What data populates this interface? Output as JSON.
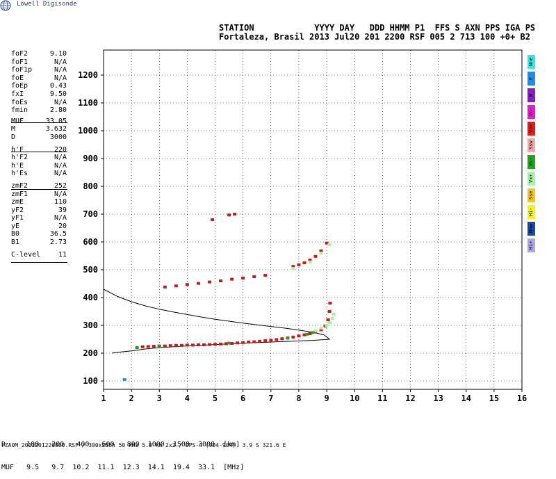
{
  "brand": "Lowell Digisonde",
  "header": {
    "line1": "STATION            YYYY DAY   DDD HHMM P1  FFS S AXN PPS IGA PS",
    "line2": "Fortaleza, Brasil 2013 Jul20 201 2200 RSF 005 2 713 100 +0+ B2"
  },
  "params": [
    {
      "label": "foF2",
      "value": "9.10"
    },
    {
      "label": "foF1",
      "value": "N/A"
    },
    {
      "label": "foF1p",
      "value": "N/A"
    },
    {
      "label": "foE",
      "value": "N/A"
    },
    {
      "label": "foEp",
      "value": "0.43"
    },
    {
      "label": "fxI",
      "value": "9.50"
    },
    {
      "label": "foEs",
      "value": "N/A"
    },
    {
      "label": "fmin",
      "value": "2.80"
    },
    {
      "label": "MUF",
      "value": "33.05"
    },
    {
      "label": "M",
      "value": "3.632"
    },
    {
      "label": "D",
      "value": "3000"
    },
    {
      "label": "h'F",
      "value": "220"
    },
    {
      "label": "h'F2",
      "value": "N/A"
    },
    {
      "label": "h'E",
      "value": "N/A"
    },
    {
      "label": "h'Es",
      "value": "N/A"
    },
    {
      "label": "zmF2",
      "value": "252"
    },
    {
      "label": "zmF1",
      "value": "N/A"
    },
    {
      "label": "zmE",
      "value": "110"
    },
    {
      "label": "yF2",
      "value": "39"
    },
    {
      "label": "yF1",
      "value": "N/A"
    },
    {
      "label": "yE",
      "value": "20"
    },
    {
      "label": "B0",
      "value": "36.5"
    },
    {
      "label": "B1",
      "value": "2.73"
    },
    {
      "label": "C-level",
      "value": "11"
    }
  ],
  "legend": [
    {
      "label": "Nne",
      "color": "#33e8e8"
    },
    {
      "label": "E",
      "color": "#1a8fe8"
    },
    {
      "label": "W",
      "color": "#8a1acc"
    },
    {
      "label": "Vo-",
      "color": "#e81acc"
    },
    {
      "label": "Vo+",
      "color": "#e81a1a"
    },
    {
      "label": "Ssw",
      "color": "#f4a8a8"
    },
    {
      "label": "Vx-",
      "color": "#1aa81a"
    },
    {
      "label": "Vx+",
      "color": "#a8f4a8"
    },
    {
      "label": "Sse",
      "color": "#f4c81a"
    },
    {
      "label": "Hi-",
      "color": "#f4f41a"
    },
    {
      "label": "Nnw",
      "color": "#1a4aa8"
    },
    {
      "label": "Hi+",
      "color": "#a8a8e8"
    }
  ],
  "distance_table": {
    "row1": "D     100   200   400   600   800  1000  1500  3000  [km]",
    "row2": "MUF   9.5   9.7  10.2  11.1  12.3  14.1  19.4  33.1  [MHz]"
  },
  "footer": "FZA0M_2013201220000.RSF / 300x256h 50 kHz 5.0 km 2x2 / DPS-4 (904-904)  3.9 S 321.6 E",
  "chart_data": {
    "type": "scatter",
    "xlim": [
      1,
      16
    ],
    "ylim": [
      70,
      1290
    ],
    "xticks": [
      1,
      2,
      3,
      4,
      5,
      6,
      7,
      8,
      9,
      10,
      11,
      12,
      13,
      14,
      15,
      16
    ],
    "yticks": [
      100,
      200,
      300,
      400,
      500,
      600,
      700,
      800,
      900,
      1000,
      1100,
      1200
    ],
    "grid": true,
    "series": [
      {
        "color": "#d01818",
        "points": [
          [
            2.4,
            223
          ],
          [
            2.6,
            224
          ],
          [
            2.8,
            225
          ],
          [
            3.0,
            226
          ],
          [
            3.2,
            226
          ],
          [
            3.4,
            227
          ],
          [
            3.6,
            228
          ],
          [
            3.8,
            228
          ],
          [
            4.0,
            229
          ],
          [
            4.2,
            229
          ],
          [
            4.4,
            230
          ],
          [
            4.6,
            230
          ],
          [
            4.8,
            231
          ],
          [
            5.0,
            232
          ],
          [
            5.2,
            233
          ],
          [
            5.4,
            234
          ],
          [
            5.6,
            235
          ],
          [
            5.8,
            237
          ],
          [
            6.0,
            238
          ],
          [
            6.2,
            240
          ],
          [
            6.4,
            241
          ],
          [
            6.6,
            243
          ],
          [
            6.8,
            245
          ],
          [
            7.0,
            247
          ],
          [
            7.2,
            249
          ],
          [
            7.4,
            252
          ],
          [
            7.6,
            255
          ],
          [
            7.8,
            258
          ],
          [
            8.0,
            262
          ],
          [
            8.2,
            266
          ],
          [
            8.4,
            270
          ],
          [
            8.6,
            276
          ],
          [
            8.8,
            284
          ],
          [
            8.95,
            298
          ],
          [
            9.05,
            320
          ],
          [
            9.1,
            350
          ],
          [
            9.12,
            380
          ],
          [
            3.2,
            438
          ],
          [
            3.6,
            442
          ],
          [
            4.0,
            447
          ],
          [
            4.4,
            451
          ],
          [
            4.8,
            456
          ],
          [
            5.2,
            460
          ],
          [
            5.6,
            466
          ],
          [
            6.0,
            470
          ],
          [
            6.4,
            475
          ],
          [
            6.8,
            480
          ],
          [
            7.8,
            512
          ],
          [
            8.0,
            518
          ],
          [
            8.2,
            525
          ],
          [
            8.4,
            535
          ],
          [
            8.6,
            548
          ],
          [
            8.8,
            568
          ],
          [
            9.0,
            596
          ],
          [
            4.9,
            680
          ],
          [
            5.5,
            697
          ],
          [
            5.7,
            700
          ]
        ]
      },
      {
        "color": "#a8f0a8",
        "points": [
          [
            8.6,
            280
          ],
          [
            8.8,
            290
          ],
          [
            9.0,
            300
          ],
          [
            9.1,
            310
          ],
          [
            9.2,
            325
          ],
          [
            9.25,
            340
          ],
          [
            7.8,
            505
          ],
          [
            8.4,
            528
          ],
          [
            8.8,
            560
          ],
          [
            9.1,
            590
          ]
        ]
      },
      {
        "color": "#1aa81a",
        "points": [
          [
            2.2,
            220
          ],
          [
            3.0,
            224
          ],
          [
            5.5,
            236
          ],
          [
            7.6,
            254
          ],
          [
            8.3,
            268
          ],
          [
            8.5,
            274
          ]
        ]
      },
      {
        "color": "#1a8fe8",
        "points": [
          [
            1.75,
            105
          ]
        ]
      }
    ],
    "profile": {
      "color": "#000000",
      "points": [
        [
          1.0,
          430
        ],
        [
          1.5,
          404
        ],
        [
          2.0,
          385
        ],
        [
          2.5,
          370
        ],
        [
          3.0,
          358
        ],
        [
          3.5,
          348
        ],
        [
          4.0,
          339
        ],
        [
          4.5,
          330
        ],
        [
          5.0,
          322
        ],
        [
          5.5,
          315
        ],
        [
          6.0,
          308
        ],
        [
          6.5,
          302
        ],
        [
          7.0,
          296
        ],
        [
          7.5,
          290
        ],
        [
          8.0,
          283
        ],
        [
          8.5,
          275
        ],
        [
          8.9,
          266
        ],
        [
          9.1,
          250
        ],
        [
          8.5,
          246
        ],
        [
          8.0,
          244
        ],
        [
          7.0,
          240
        ],
        [
          6.0,
          236
        ],
        [
          5.0,
          231
        ],
        [
          4.0,
          226
        ],
        [
          3.0,
          220
        ],
        [
          2.5,
          215
        ],
        [
          2.0,
          208
        ],
        [
          1.5,
          203
        ],
        [
          1.3,
          200
        ]
      ]
    }
  }
}
